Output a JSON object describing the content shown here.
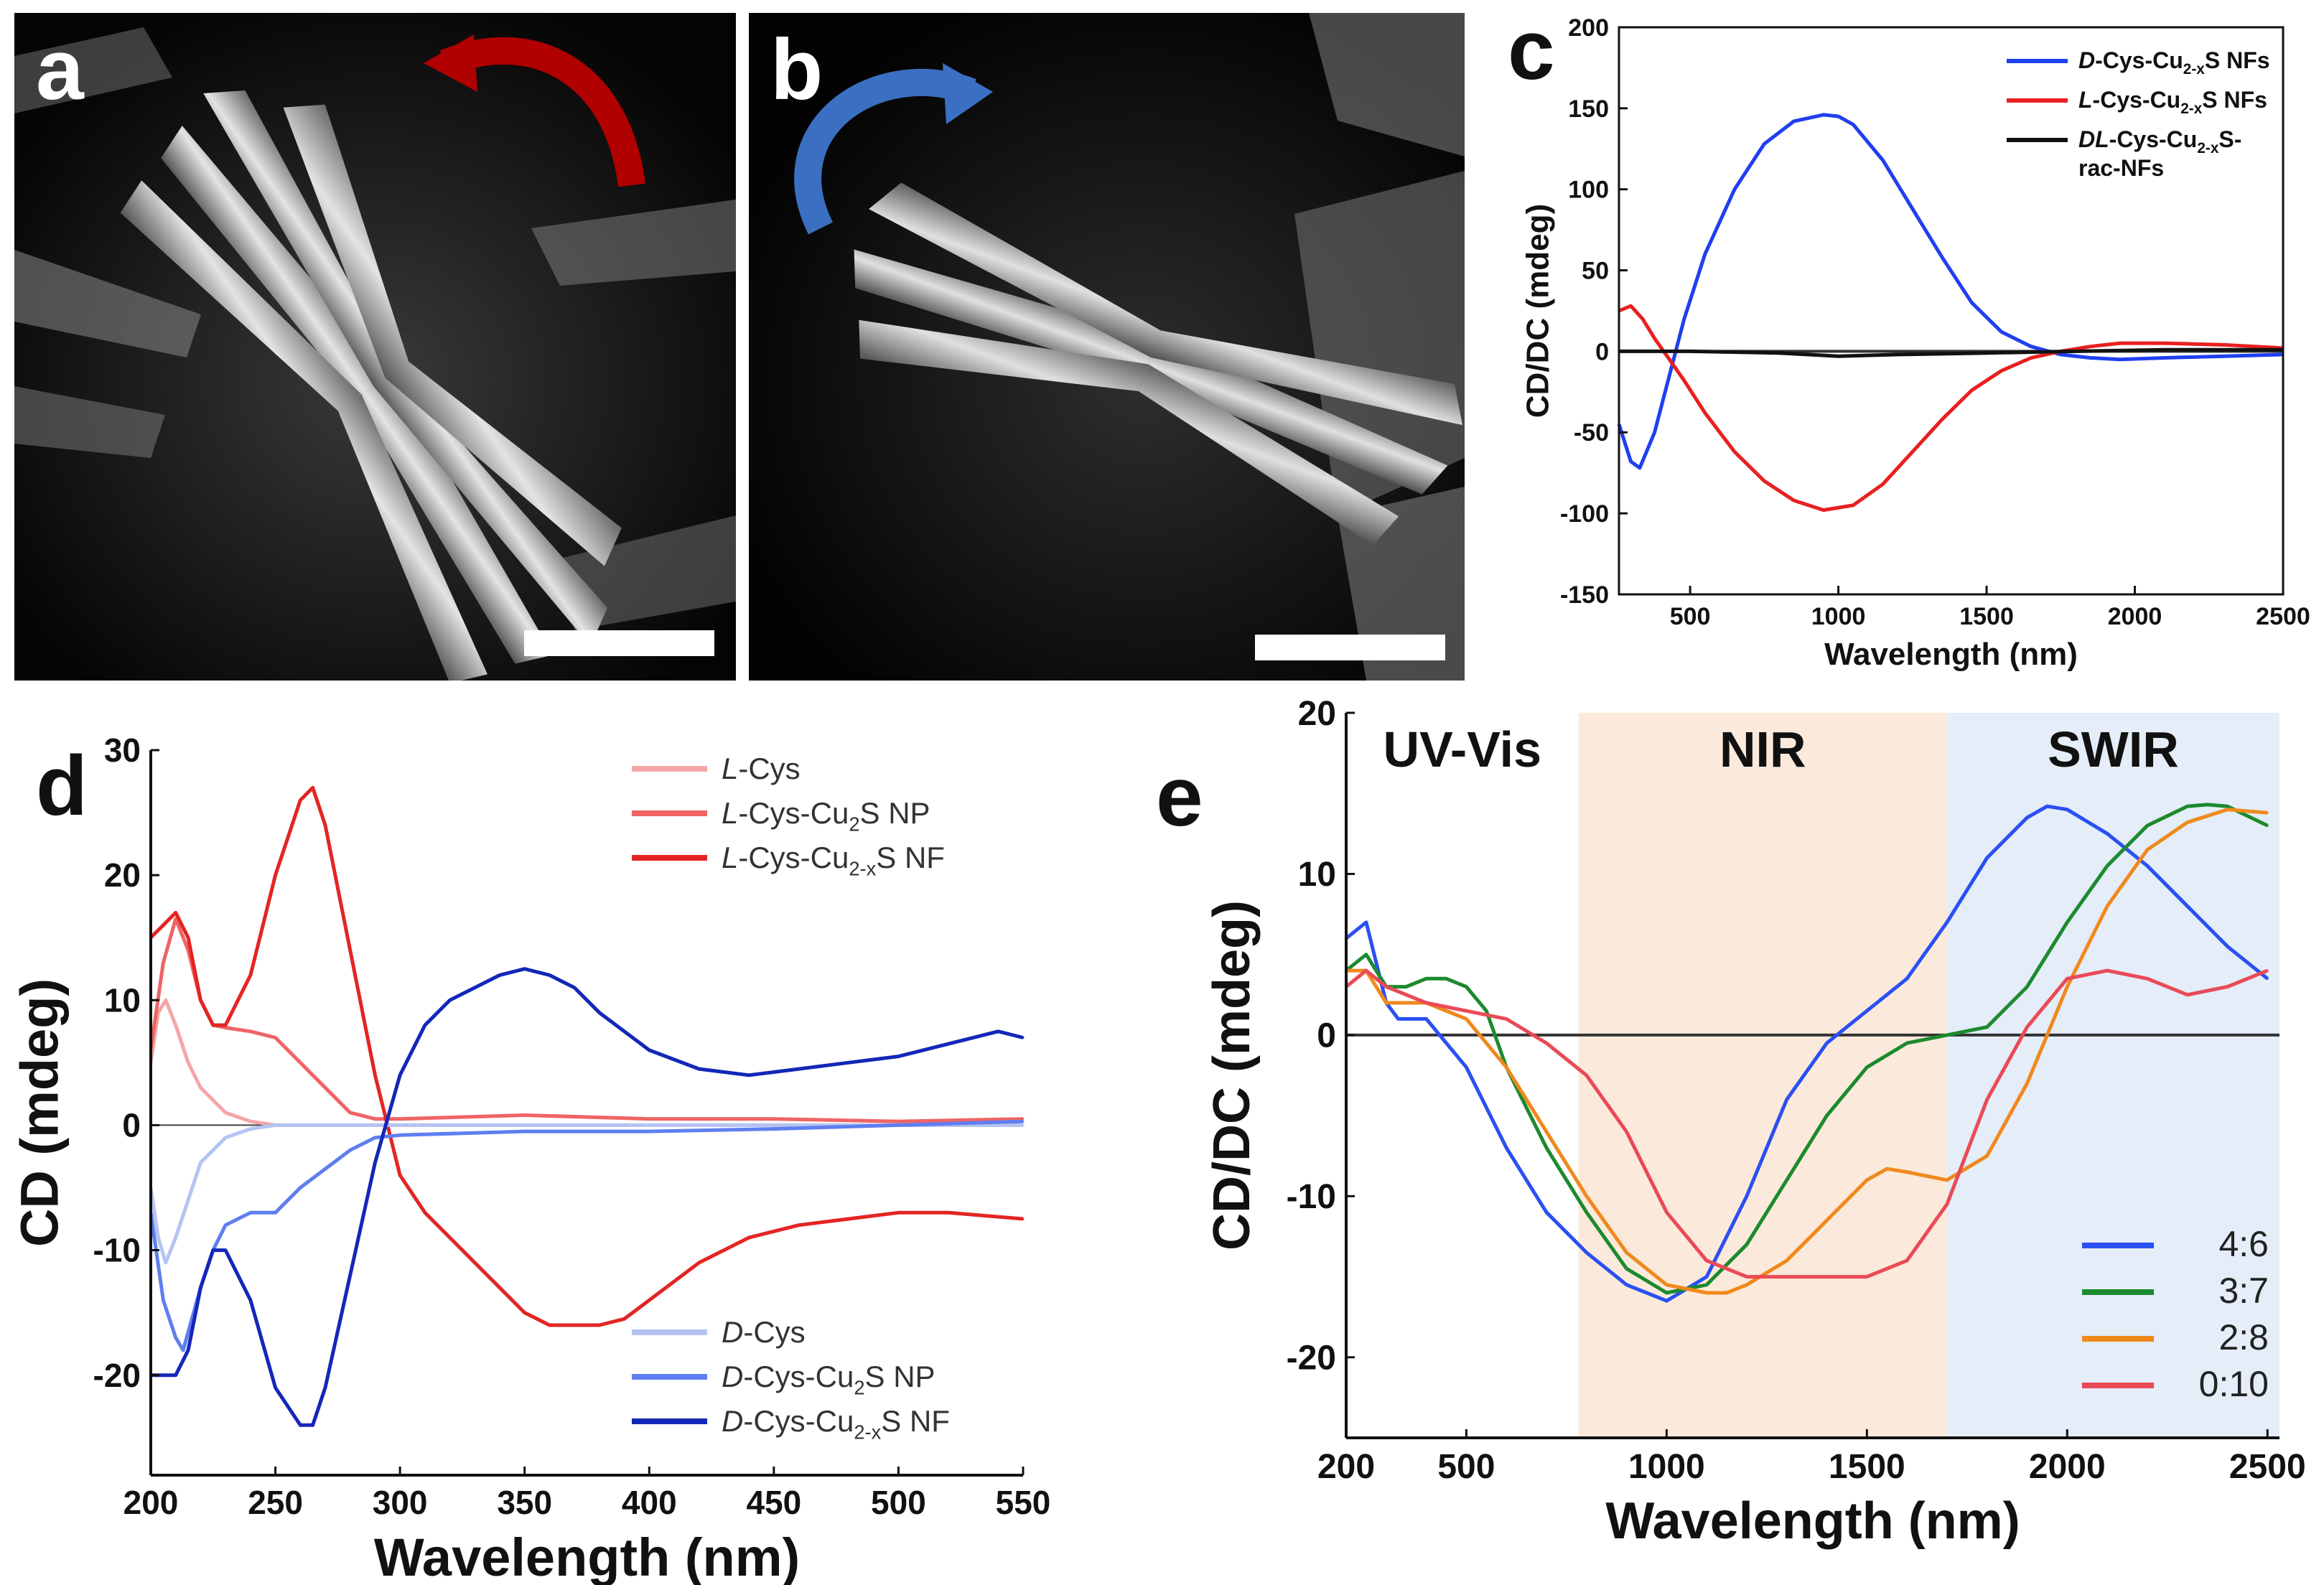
{
  "panels": {
    "a": {
      "letter": "a",
      "arrow_color": "#b00000"
    },
    "b": {
      "letter": "b",
      "arrow_color": "#3a6fc1"
    }
  },
  "chart_data": [
    {
      "id": "c",
      "letter": "c",
      "type": "line",
      "xlabel": "Wavelength (nm)",
      "ylabel": "CD/DC (mdeg)",
      "xlim": [
        260,
        2500
      ],
      "ylim": [
        -150,
        200
      ],
      "xticks": [
        500,
        1000,
        1500,
        2000,
        2500
      ],
      "yticks": [
        -150,
        -100,
        -50,
        0,
        50,
        100,
        150,
        200
      ],
      "legend_position": "top-right",
      "series": [
        {
          "name": "D-Cys-Cu2-xS NFs",
          "legend": {
            "italic": "D",
            "pre": "-Cys-Cu",
            "sub": "2-x",
            "post": "S NFs"
          },
          "color": "#1f3ff0",
          "x": [
            260,
            300,
            330,
            380,
            430,
            480,
            550,
            650,
            750,
            850,
            950,
            1000,
            1050,
            1150,
            1250,
            1350,
            1450,
            1550,
            1650,
            1750,
            1850,
            1950,
            2100,
            2300,
            2500
          ],
          "y": [
            -45,
            -68,
            -72,
            -50,
            -15,
            20,
            60,
            100,
            128,
            142,
            146,
            145,
            140,
            118,
            88,
            58,
            30,
            12,
            3,
            -2,
            -4,
            -5,
            -4,
            -3,
            -2
          ]
        },
        {
          "name": "L-Cys-Cu2-xS NFs",
          "legend": {
            "italic": "L",
            "pre": "-Cys-Cu",
            "sub": "2-x",
            "post": "S NFs"
          },
          "color": "#e82020",
          "x": [
            260,
            300,
            340,
            380,
            430,
            480,
            550,
            650,
            750,
            850,
            950,
            1050,
            1150,
            1250,
            1350,
            1450,
            1550,
            1650,
            1750,
            1850,
            1950,
            2100,
            2300,
            2500
          ],
          "y": [
            25,
            28,
            20,
            8,
            -5,
            -18,
            -38,
            -62,
            -80,
            -92,
            -98,
            -95,
            -82,
            -62,
            -42,
            -24,
            -12,
            -4,
            0,
            3,
            5,
            5,
            4,
            2
          ]
        },
        {
          "name": "DL-Cys-Cu2-xS-rac-NFs",
          "legend": {
            "italic": "DL",
            "pre": "-Cys-Cu",
            "sub": "2-x",
            "post": "S-",
            "line2": "rac-NFs"
          },
          "color": "#111111",
          "x": [
            260,
            500,
            800,
            1000,
            1200,
            1500,
            1800,
            2100,
            2500
          ],
          "y": [
            0,
            0,
            -1,
            -3,
            -2,
            -1,
            0,
            1,
            1
          ]
        }
      ]
    },
    {
      "id": "d",
      "letter": "d",
      "type": "line",
      "xlabel": "Wavelength (nm)",
      "ylabel": "CD (mdeg)",
      "xlim": [
        200,
        550
      ],
      "ylim": [
        -28,
        30
      ],
      "xticks": [
        200,
        250,
        300,
        350,
        400,
        450,
        500,
        550
      ],
      "yticks": [
        -20,
        -10,
        0,
        10,
        20,
        30
      ],
      "legend_position": "top-right and bottom-right",
      "series": [
        {
          "name": "L-Cys",
          "legend": {
            "italic": "L",
            "pre": "-Cys",
            "sub": "",
            "post": ""
          },
          "color": "#f4a6a6",
          "x": [
            200,
            203,
            206,
            210,
            215,
            220,
            230,
            240,
            250,
            300,
            550
          ],
          "y": [
            5,
            9,
            10,
            8,
            5,
            3,
            1,
            0.3,
            0,
            0,
            0
          ]
        },
        {
          "name": "L-Cys-Cu2S NP",
          "legend": {
            "italic": "L",
            "pre": "-Cys-Cu",
            "sub": "2",
            "post": "S NP"
          },
          "color": "#ef6464",
          "x": [
            200,
            205,
            210,
            215,
            220,
            225,
            230,
            240,
            250,
            260,
            270,
            280,
            290,
            300,
            350,
            400,
            450,
            500,
            550
          ],
          "y": [
            6,
            13,
            16.5,
            14,
            10,
            8,
            7.8,
            7.5,
            7,
            5,
            3,
            1,
            0.5,
            0.5,
            0.8,
            0.5,
            0.5,
            0.3,
            0.5
          ]
        },
        {
          "name": "L-Cys-Cu2-xS NF",
          "legend": {
            "italic": "L",
            "pre": "-Cys-Cu",
            "sub": "2-x",
            "post": "S NF"
          },
          "color": "#e42424",
          "x": [
            200,
            205,
            210,
            215,
            220,
            225,
            230,
            240,
            250,
            260,
            265,
            270,
            280,
            290,
            300,
            310,
            320,
            330,
            340,
            350,
            360,
            370,
            380,
            390,
            400,
            420,
            440,
            460,
            480,
            500,
            520,
            550
          ],
          "y": [
            15,
            16,
            17,
            15,
            10,
            8,
            8,
            12,
            20,
            26,
            27,
            24,
            14,
            4,
            -4,
            -7,
            -9,
            -11,
            -13,
            -15,
            -16,
            -16,
            -16,
            -15.5,
            -14,
            -11,
            -9,
            -8,
            -7.5,
            -7,
            -7,
            -7.5
          ]
        },
        {
          "name": "D-Cys",
          "legend": {
            "italic": "D",
            "pre": "-Cys",
            "sub": "",
            "post": ""
          },
          "color": "#b4c4f2",
          "x": [
            200,
            203,
            206,
            210,
            215,
            220,
            230,
            240,
            250,
            300,
            550
          ],
          "y": [
            -5,
            -9,
            -11,
            -9,
            -6,
            -3,
            -1,
            -0.3,
            0,
            0,
            0
          ]
        },
        {
          "name": "D-Cys-Cu2S NP",
          "legend": {
            "italic": "D",
            "pre": "-Cys-Cu",
            "sub": "2",
            "post": "S NP"
          },
          "color": "#5f7ef0",
          "x": [
            200,
            205,
            210,
            213,
            220,
            225,
            230,
            240,
            250,
            260,
            270,
            280,
            290,
            300,
            350,
            400,
            450,
            500,
            550
          ],
          "y": [
            -7,
            -14,
            -17,
            -18,
            -13,
            -10,
            -8,
            -7,
            -7,
            -5,
            -3.5,
            -2,
            -1,
            -0.8,
            -0.5,
            -0.5,
            -0.3,
            0,
            0.3
          ]
        },
        {
          "name": "D-Cys-Cu2-xS NF",
          "legend": {
            "italic": "D",
            "pre": "-Cys-Cu",
            "sub": "2-x",
            "post": "S NF"
          },
          "color": "#1327b8",
          "x": [
            200,
            205,
            210,
            215,
            220,
            225,
            230,
            240,
            250,
            260,
            265,
            270,
            280,
            290,
            300,
            310,
            320,
            330,
            340,
            350,
            360,
            370,
            380,
            400,
            420,
            440,
            460,
            480,
            500,
            520,
            540,
            550
          ],
          "y": [
            -20,
            -20,
            -20,
            -18,
            -13,
            -10,
            -10,
            -14,
            -21,
            -24,
            -24,
            -21,
            -12,
            -3,
            4,
            8,
            10,
            11,
            12,
            12.5,
            12,
            11,
            9,
            6,
            4.5,
            4,
            4.5,
            5,
            5.5,
            6.5,
            7.5,
            7
          ]
        }
      ]
    },
    {
      "id": "e",
      "letter": "e",
      "type": "line",
      "xlabel": "Wavelength (nm)",
      "ylabel": "CD/DC (mdeg)",
      "xlim": [
        200,
        2530
      ],
      "ylim": [
        -25,
        20
      ],
      "xticks": [
        200,
        500,
        1000,
        1500,
        2000,
        2500
      ],
      "yticks": [
        -20,
        -10,
        0,
        10,
        20
      ],
      "legend_position": "bottom-right",
      "regions": [
        {
          "label": "UV-Vis",
          "from": 200,
          "to": 780,
          "color": "#ffffff"
        },
        {
          "label": "NIR",
          "from": 780,
          "to": 1700,
          "color": "#fbeadb"
        },
        {
          "label": "SWIR",
          "from": 1700,
          "to": 2530,
          "color": "#e4edf8"
        }
      ],
      "series": [
        {
          "name": "4:6",
          "color": "#2a50f2",
          "x": [
            200,
            250,
            300,
            330,
            400,
            500,
            600,
            700,
            800,
            900,
            1000,
            1100,
            1200,
            1300,
            1400,
            1500,
            1600,
            1700,
            1800,
            1900,
            1950,
            2000,
            2100,
            2200,
            2300,
            2400,
            2500
          ],
          "y": [
            6,
            7,
            2,
            1,
            1,
            -2,
            -7,
            -11,
            -13.5,
            -15.5,
            -16.5,
            -15,
            -10,
            -4,
            -0.5,
            1.5,
            3.5,
            7,
            11,
            13.5,
            14.2,
            14,
            12.5,
            10.5,
            8,
            5.5,
            3.5
          ]
        },
        {
          "name": "3:7",
          "color": "#1c8a2e",
          "x": [
            200,
            250,
            300,
            350,
            400,
            450,
            500,
            550,
            600,
            700,
            800,
            900,
            1000,
            1100,
            1200,
            1300,
            1400,
            1500,
            1600,
            1700,
            1800,
            1900,
            2000,
            2100,
            2200,
            2300,
            2350,
            2400,
            2500
          ],
          "y": [
            4,
            5,
            3,
            3,
            3.5,
            3.5,
            3,
            1.5,
            -2,
            -7,
            -11,
            -14.5,
            -16,
            -15.5,
            -13,
            -9,
            -5,
            -2,
            -0.5,
            0,
            0.5,
            3,
            7,
            10.5,
            13,
            14.2,
            14.3,
            14.2,
            13
          ]
        },
        {
          "name": "2:8",
          "color": "#f0891c",
          "x": [
            200,
            250,
            300,
            400,
            500,
            600,
            700,
            800,
            900,
            1000,
            1100,
            1150,
            1200,
            1300,
            1400,
            1500,
            1550,
            1600,
            1700,
            1800,
            1900,
            2000,
            2100,
            2200,
            2300,
            2400,
            2500
          ],
          "y": [
            4,
            4,
            2,
            2,
            1,
            -2,
            -6,
            -10,
            -13.5,
            -15.5,
            -16,
            -16,
            -15.5,
            -14,
            -11.5,
            -9,
            -8.3,
            -8.5,
            -9,
            -7.5,
            -3,
            3,
            8,
            11.5,
            13.2,
            14,
            13.8
          ]
        },
        {
          "name": "0:10",
          "color": "#ea4a56",
          "x": [
            200,
            250,
            300,
            400,
            500,
            600,
            700,
            800,
            900,
            1000,
            1100,
            1200,
            1300,
            1400,
            1500,
            1600,
            1700,
            1800,
            1900,
            1950,
            2000,
            2100,
            2200,
            2300,
            2400,
            2500
          ],
          "y": [
            3,
            4,
            3,
            2,
            1.5,
            1,
            -0.5,
            -2.5,
            -6,
            -11,
            -14,
            -15,
            -15,
            -15,
            -15,
            -14,
            -10.5,
            -4,
            0.5,
            2,
            3.5,
            4,
            3.5,
            2.5,
            3,
            4
          ]
        }
      ]
    }
  ]
}
